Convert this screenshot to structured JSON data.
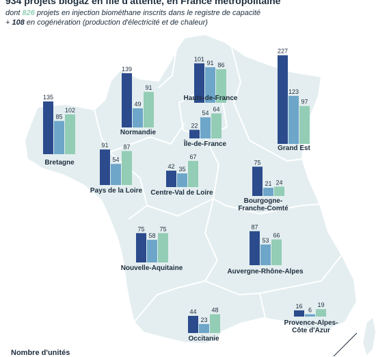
{
  "header": {
    "title": "934 projets biogaz en file d'attente, en France métropolitaine",
    "sub1_prefix": "dont ",
    "sub1_value": "826",
    "sub1_suffix": " projets en injection biométhane inscrits dans le registre de capacité",
    "sub2_prefix": "+ ",
    "sub2_value": "108",
    "sub2_suffix": " en cogénération (production d'électricité et de chaleur)"
  },
  "legend": {
    "title": "Nombre d'unités"
  },
  "colors": {
    "series1": "#2b4b8c",
    "series2": "#6da6c9",
    "series3": "#93cdb5",
    "land": "#e4eef0",
    "border": "#ffffff",
    "accent": "#8fcfb6"
  },
  "regions": [
    {
      "name": "Hauts-de-France",
      "values": [
        101,
        91,
        86
      ]
    },
    {
      "name": "Normandie",
      "values": [
        139,
        49,
        91
      ]
    },
    {
      "name": "Grand Est",
      "values": [
        227,
        123,
        97
      ]
    },
    {
      "name": "Île-de-France",
      "values": [
        22,
        54,
        64
      ]
    },
    {
      "name": "Bretagne",
      "values": [
        135,
        85,
        102
      ]
    },
    {
      "name": "Pays de la Loire",
      "values": [
        91,
        54,
        87
      ]
    },
    {
      "name": "Centre-Val de Loire",
      "values": [
        42,
        35,
        67
      ]
    },
    {
      "name": "Bourgogne-\nFranche-Comté",
      "values": [
        75,
        21,
        24
      ]
    },
    {
      "name": "Nouvelle-Aquitaine",
      "values": [
        75,
        58,
        75
      ]
    },
    {
      "name": "Auvergne-Rhône-Alpes",
      "values": [
        87,
        53,
        66
      ]
    },
    {
      "name": "Occitanie",
      "values": [
        44,
        23,
        48
      ]
    },
    {
      "name": "Provence-Alpes-\nCôte d'Azur",
      "values": [
        16,
        6,
        19
      ]
    }
  ]
}
